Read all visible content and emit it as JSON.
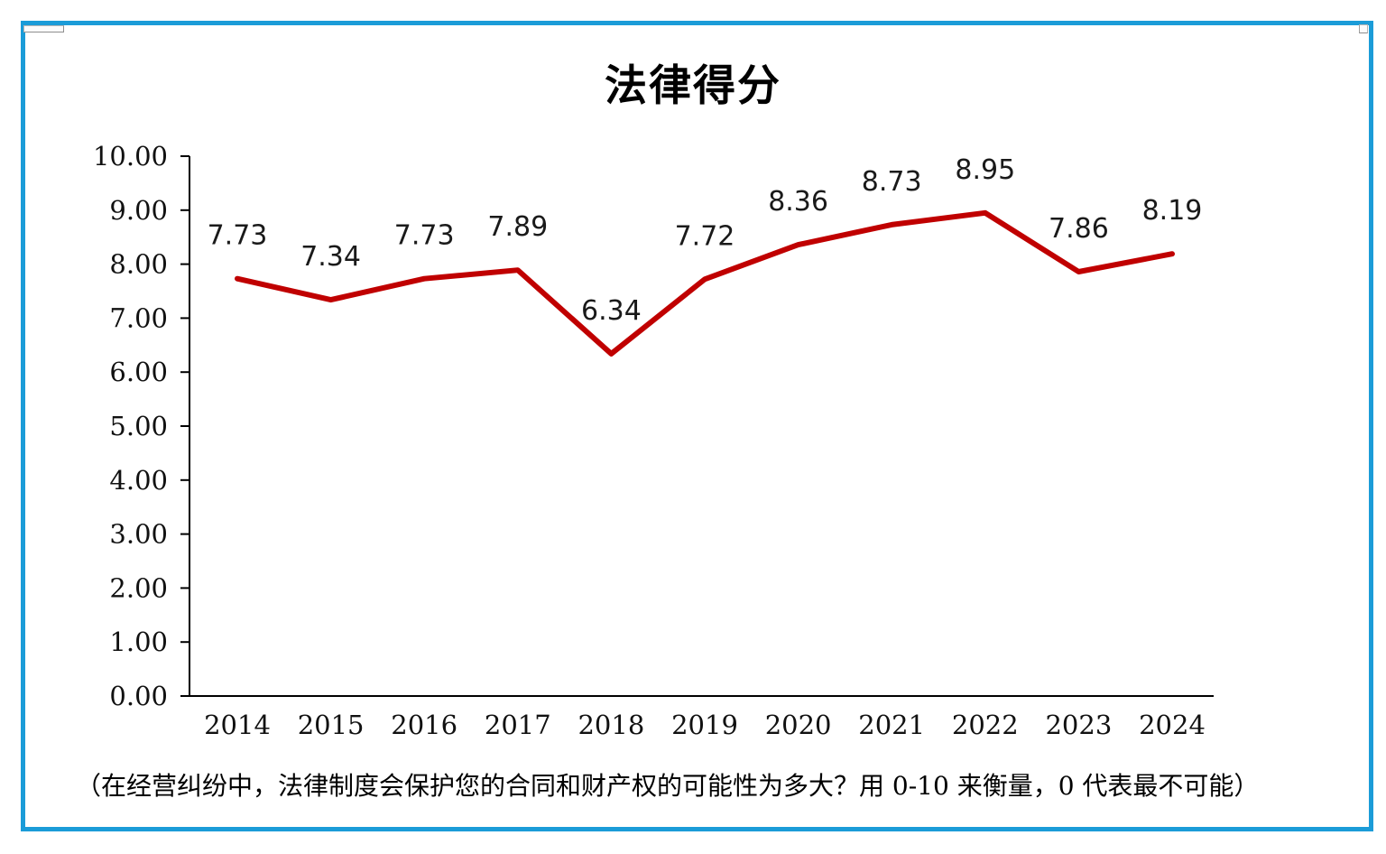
{
  "title": "法律得分",
  "caption": "（在经营纠纷中，法律制度会保护您的合同和财产权的可能性为多大？用 0-10 来衡量，0 代表最不可能）",
  "frame": {
    "border_color": "#1b9cd8"
  },
  "chart_data": {
    "type": "line",
    "title": "法律得分",
    "categories": [
      "2014",
      "2015",
      "2016",
      "2017",
      "2018",
      "2019",
      "2020",
      "2021",
      "2022",
      "2023",
      "2024"
    ],
    "series": [
      {
        "name": "法律得分",
        "values": [
          7.73,
          7.34,
          7.73,
          7.89,
          6.34,
          7.72,
          8.36,
          8.73,
          8.95,
          7.86,
          8.19
        ],
        "data_labels": [
          "7.73",
          "7.34",
          "7.73",
          "7.89",
          "6.34",
          "7.72",
          "8.36",
          "8.73",
          "8.95",
          "7.86",
          "8.19"
        ],
        "color": "#c00000"
      }
    ],
    "xlabel": "",
    "ylabel": "",
    "ylim": [
      0,
      10
    ],
    "ytick_labels": [
      "0.00",
      "1.00",
      "2.00",
      "3.00",
      "4.00",
      "5.00",
      "6.00",
      "7.00",
      "8.00",
      "9.00",
      "10.00"
    ],
    "grid": false,
    "legend_position": "none",
    "axis_color": "#000000"
  }
}
